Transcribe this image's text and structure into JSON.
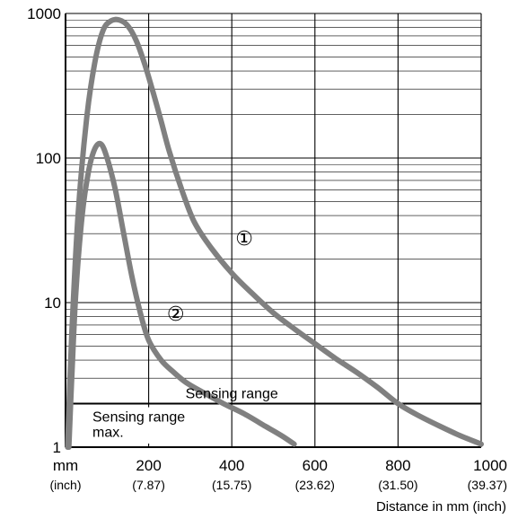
{
  "chart_data": {
    "type": "line",
    "xlabel": "Distance in mm (inch)",
    "ylabel": "",
    "xlim": [
      0,
      1000
    ],
    "ylim": [
      1,
      1000
    ],
    "y_scale": "log",
    "grid": true,
    "x_ticks": [
      {
        "value": 0,
        "label": "mm",
        "sub": "(inch)"
      },
      {
        "value": 200,
        "label": "200",
        "sub": "(7.87)"
      },
      {
        "value": 400,
        "label": "400",
        "sub": "(15.75)"
      },
      {
        "value": 600,
        "label": "600",
        "sub": "(23.62)"
      },
      {
        "value": 800,
        "label": "800",
        "sub": "(31.50)"
      },
      {
        "value": 1000,
        "label": "1000",
        "sub": "(39.37)"
      }
    ],
    "y_ticks": [
      {
        "value": 1,
        "label": "1"
      },
      {
        "value": 10,
        "label": "10"
      },
      {
        "value": 100,
        "label": "100"
      },
      {
        "value": 1000,
        "label": "1000"
      }
    ],
    "series": [
      {
        "name": "①",
        "color": "#808080",
        "x": [
          5,
          15,
          30,
          50,
          70,
          90,
          110,
          130,
          150,
          170,
          190,
          210,
          230,
          250,
          280,
          310,
          350,
          400,
          450,
          500,
          550,
          600,
          650,
          700,
          750,
          800,
          850,
          900,
          950,
          1000
        ],
        "y": [
          1,
          6,
          40,
          180,
          450,
          760,
          890,
          900,
          820,
          650,
          450,
          290,
          180,
          110,
          60,
          36,
          24,
          16,
          11.5,
          8.5,
          6.6,
          5.2,
          4.1,
          3.3,
          2.6,
          2.0,
          1.65,
          1.4,
          1.2,
          1.05
        ]
      },
      {
        "name": "②",
        "color": "#808080",
        "x": [
          8,
          15,
          25,
          40,
          55,
          70,
          85,
          100,
          120,
          140,
          160,
          180,
          200,
          230,
          260,
          290,
          330,
          380,
          430,
          480,
          520,
          550
        ],
        "y": [
          1,
          3,
          12,
          40,
          80,
          115,
          125,
          100,
          60,
          30,
          15,
          8.5,
          5.5,
          4,
          3.3,
          2.8,
          2.4,
          2.0,
          1.7,
          1.4,
          1.2,
          1.05
        ]
      }
    ],
    "annotations": {
      "sensing_range_label": "Sensing range",
      "sensing_range_y": 2,
      "sensing_range_max_line1": "Sensing range",
      "sensing_range_max_line2": "max.",
      "sensing_range_max_y": 1,
      "curve_labels": [
        {
          "text": "①",
          "x": 430,
          "y": 25
        },
        {
          "text": "②",
          "x": 265,
          "y": 7.5
        }
      ]
    }
  }
}
